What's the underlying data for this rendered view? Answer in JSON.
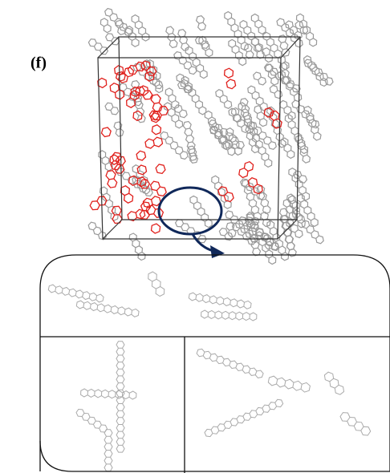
{
  "panel_label": "(f)"
}
